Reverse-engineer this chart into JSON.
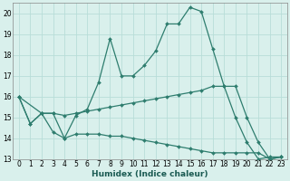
{
  "xlabel": "Humidex (Indice chaleur)",
  "bg_color": "#d9f0ec",
  "grid_color": "#b8ddd8",
  "line_color": "#2e7d6e",
  "xlim": [
    -0.5,
    23.5
  ],
  "ylim": [
    13.0,
    20.5
  ],
  "yticks": [
    13,
    14,
    15,
    16,
    17,
    18,
    19,
    20
  ],
  "xticks": [
    0,
    1,
    2,
    3,
    4,
    5,
    6,
    7,
    8,
    9,
    10,
    11,
    12,
    13,
    14,
    15,
    16,
    17,
    18,
    19,
    20,
    21,
    22,
    23
  ],
  "line1_x": [
    0,
    1,
    2,
    3,
    4,
    5,
    6,
    7,
    8,
    9,
    10,
    11,
    12,
    13,
    14,
    15,
    16,
    17,
    18,
    19,
    20,
    21,
    22,
    23
  ],
  "line1_y": [
    16.0,
    14.7,
    15.2,
    15.2,
    14.0,
    15.1,
    15.4,
    16.7,
    18.8,
    17.0,
    17.0,
    17.5,
    18.2,
    19.5,
    19.5,
    20.3,
    20.1,
    18.3,
    16.5,
    15.0,
    13.8,
    13.0,
    13.1,
    13.1
  ],
  "line2_x": [
    0,
    2,
    3,
    4,
    5,
    6,
    7,
    8,
    9,
    10,
    11,
    12,
    13,
    14,
    15,
    16,
    17,
    18,
    19,
    20,
    21,
    22,
    23
  ],
  "line2_y": [
    16.0,
    15.2,
    15.2,
    15.1,
    15.2,
    15.3,
    15.4,
    15.5,
    15.6,
    15.7,
    15.8,
    15.9,
    16.0,
    16.1,
    16.2,
    16.3,
    16.5,
    16.5,
    16.5,
    15.0,
    13.8,
    13.0,
    13.1
  ],
  "line3_x": [
    0,
    1,
    2,
    3,
    4,
    5,
    6,
    7,
    8,
    9,
    10,
    11,
    12,
    13,
    14,
    15,
    16,
    17,
    18,
    19,
    20,
    21,
    22,
    23
  ],
  "line3_y": [
    16.0,
    14.7,
    15.2,
    14.3,
    14.0,
    14.2,
    14.2,
    14.2,
    14.1,
    14.1,
    14.0,
    13.9,
    13.8,
    13.7,
    13.6,
    13.5,
    13.4,
    13.3,
    13.3,
    13.3,
    13.3,
    13.3,
    13.0,
    13.1
  ]
}
